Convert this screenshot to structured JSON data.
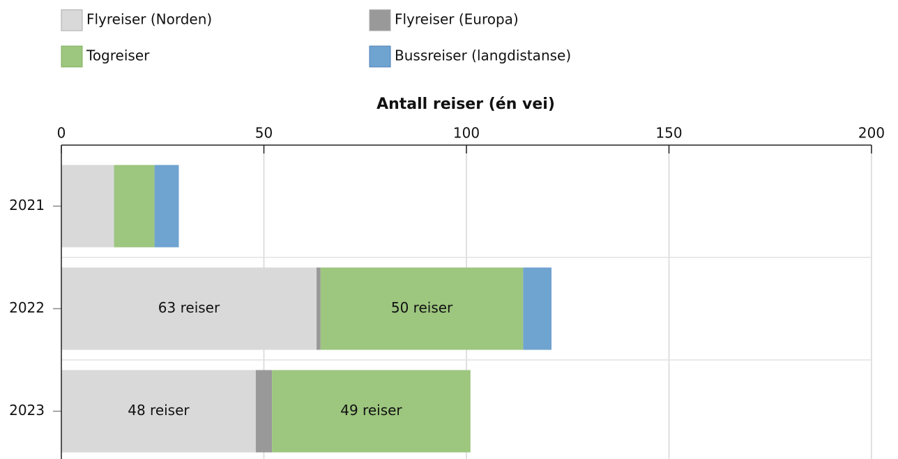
{
  "chart_data": {
    "type": "stacked-barh",
    "x_label": "Antall reiser (én vei)",
    "categories": [
      "2021",
      "2022",
      "2023"
    ],
    "series": [
      {
        "name": "Flyreiser (Norden)",
        "color": "#d9d9d9",
        "values": [
          13,
          63,
          48
        ],
        "value_labels": [
          null,
          "63 reiser",
          "48 reiser"
        ]
      },
      {
        "name": "Flyreiser (Europa)",
        "color": "#999999",
        "values": [
          0,
          1,
          4
        ]
      },
      {
        "name": "Togreiser",
        "color": "#9dc67f",
        "values": [
          10,
          50,
          49
        ],
        "value_labels": [
          null,
          "50 reiser",
          "49 reiser"
        ]
      },
      {
        "name": "Bussreiser (langdistanse)",
        "color": "#6fa3d0",
        "values": [
          6,
          7,
          0
        ]
      }
    ],
    "xlim": [
      0,
      200
    ],
    "xticks": [
      0,
      50,
      100,
      150,
      200
    ],
    "grid": true
  }
}
